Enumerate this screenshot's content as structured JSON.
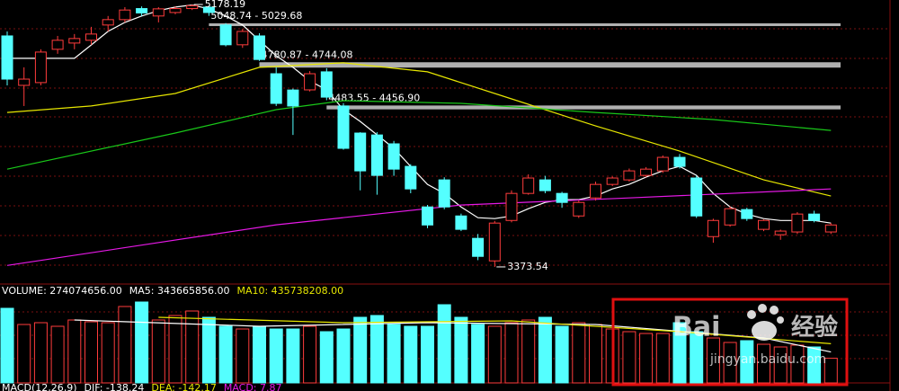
{
  "chart_data": {
    "type": "candlestick",
    "ylim": [
      3262,
      5209
    ],
    "open": [
      4962,
      4622,
      4641,
      4870,
      4913,
      4932,
      5037,
      5074,
      5150,
      5099,
      5123,
      5150,
      5160,
      5037,
      4901,
      4962,
      4702,
      4590,
      4591,
      4715,
      4480,
      4294,
      4281,
      4220,
      4065,
      3786,
      3972,
      3724,
      3570,
      3415,
      3693,
      3879,
      3972,
      3879,
      3724,
      3848,
      3941,
      3972,
      4003,
      4034,
      4127,
      3985,
      3582,
      3662,
      3768,
      3632,
      3595,
      3614,
      3737,
      3614
    ],
    "high": [
      4993,
      4746,
      4870,
      4962,
      4975,
      5024,
      5099,
      5160,
      5165,
      5160,
      5165,
      5178.19,
      5170,
      5050,
      5010,
      4980,
      4745,
      4600,
      4720,
      4740,
      4500,
      4300,
      4300,
      4240,
      4080,
      3800,
      3990,
      3740,
      3600,
      3690,
      3900,
      4010,
      4000,
      3890,
      3830,
      3960,
      3995,
      4050,
      4060,
      4140,
      4150,
      4000,
      3705,
      3790,
      3780,
      3700,
      3630,
      3750,
      3760,
      3675
    ],
    "low": [
      4622,
      4480,
      4622,
      4839,
      4870,
      4901,
      4993,
      5055,
      5099,
      5055,
      5111,
      5140,
      5100,
      4890,
      4880,
      4790,
      4480,
      4281,
      4580,
      4520,
      4180,
      3900,
      3870,
      4000,
      3880,
      3640,
      3770,
      3620,
      3420,
      3373.54,
      3680,
      3870,
      3880,
      3780,
      3710,
      3830,
      3930,
      3960,
      3990,
      4020,
      4050,
      3710,
      3540,
      3650,
      3690,
      3620,
      3560,
      3600,
      3680,
      3600
    ],
    "close": [
      4665,
      4665,
      4851,
      4932,
      4944,
      4975,
      5074,
      5140,
      5120,
      5148,
      5150,
      5170,
      5123,
      4901,
      4993,
      4800,
      4498,
      4480,
      4702,
      4541,
      4189,
      4034,
      4003,
      4046,
      3910,
      3662,
      3786,
      3632,
      3446,
      3675,
      3879,
      3985,
      3898,
      3817,
      3817,
      3941,
      3985,
      4034,
      4046,
      4127,
      4065,
      3724,
      3693,
      3774,
      3706,
      3693,
      3620,
      3737,
      3693,
      3662
    ],
    "up_color": "#ff3c3c",
    "down_color": "#54ffff",
    "price_lines": [
      {
        "color": "#ffffff",
        "x": [
          0,
          1,
          2,
          3,
          4,
          5,
          6,
          7,
          8,
          9,
          10,
          11,
          12,
          13,
          14,
          15,
          16,
          17,
          18,
          19,
          20,
          21,
          22,
          23,
          24,
          25,
          26,
          27,
          28,
          29,
          30,
          31,
          32,
          33,
          34,
          35,
          36,
          37,
          38,
          39,
          40,
          41,
          42,
          43,
          44,
          45,
          46,
          47,
          48,
          49
        ],
        "values": [
          4808,
          4808,
          4808,
          4808,
          4808,
          4900,
          4993,
          5055,
          5099,
          5136,
          5160,
          5175,
          5148,
          5099,
          5037,
          4931,
          4826,
          4746,
          4653,
          4591,
          4455,
          4374,
          4282,
          4189,
          4065,
          3941,
          3879,
          3786,
          3712,
          3706,
          3724,
          3774,
          3817,
          3836,
          3836,
          3861,
          3910,
          3941,
          3991,
          4034,
          4065,
          4003,
          3879,
          3786,
          3737,
          3706,
          3693,
          3693,
          3693,
          3675
        ]
      },
      {
        "color": "#e6e600",
        "x": [
          0,
          5,
          10,
          15,
          20,
          25,
          30,
          35,
          40,
          45,
          49
        ],
        "values": [
          4436,
          4480,
          4566,
          4746,
          4777,
          4715,
          4529,
          4343,
          4170,
          3972,
          3861
        ]
      },
      {
        "color": "#19c819",
        "x": [
          0,
          10,
          16,
          20,
          27,
          35,
          42,
          49
        ],
        "values": [
          4046,
          4294,
          4455,
          4517,
          4498,
          4436,
          4387,
          4312
        ]
      },
      {
        "color": "#e619e6",
        "x": [
          0,
          16,
          27,
          37,
          49
        ],
        "values": [
          3384,
          3663,
          3799,
          3848,
          3910
        ]
      }
    ],
    "bands": [
      {
        "label": "5048.74 - 5029.68",
        "high": 5048.74,
        "low": 5029.68,
        "from": 12
      },
      {
        "label": "4780.87 - 4744.08",
        "high": 4780.87,
        "low": 4744.08,
        "from": 15
      },
      {
        "label": "4483.55 - 4456.90",
        "high": 4483.55,
        "low": 4456.9,
        "from": 19
      }
    ],
    "point_labels": [
      {
        "label": "5178.19",
        "value": 5178.19,
        "at": 11
      },
      {
        "label": "3373.54",
        "value": 3373.54,
        "at": 29
      }
    ],
    "volume_ylim": [
      0,
      900000000
    ],
    "volume": [
      830000000,
      650000000,
      670000000,
      630000000,
      700000000,
      680000000,
      670000000,
      850000000,
      900000000,
      700000000,
      750000000,
      800000000,
      730000000,
      630000000,
      600000000,
      630000000,
      600000000,
      600000000,
      630000000,
      570000000,
      600000000,
      730000000,
      750000000,
      650000000,
      630000000,
      630000000,
      870000000,
      730000000,
      650000000,
      630000000,
      670000000,
      700000000,
      730000000,
      630000000,
      670000000,
      650000000,
      600000000,
      570000000,
      550000000,
      550000000,
      670000000,
      570000000,
      500000000,
      450000000,
      470000000,
      430000000,
      400000000,
      420000000,
      400000000,
      274074656
    ],
    "volume_lines": [
      {
        "color": "#ffffff",
        "x": [
          4,
          15,
          25,
          35,
          45,
          49
        ],
        "values": [
          700000000,
          630000000,
          670000000,
          650000000,
          500000000,
          343665856
        ]
      },
      {
        "color": "#e6e600",
        "x": [
          9,
          20,
          30,
          40,
          49
        ],
        "values": [
          730000000,
          670000000,
          690000000,
          570000000,
          435738208
        ]
      }
    ],
    "volume_header": [
      {
        "text": "VOLUME: 274074656.00",
        "color": "#ffffff"
      },
      {
        "text": "MA5: 343665856.00",
        "color": "#ffffff"
      },
      {
        "text": "MA10: 435738208.00",
        "color": "#e6e600"
      }
    ],
    "macd_header": [
      {
        "text": "MACD(12,26,9)",
        "color": "#ffffff"
      },
      {
        "text": "DIF: -138.24",
        "color": "#ffffff"
      },
      {
        "text": "DEA: -142.17",
        "color": "#e6e600"
      },
      {
        "text": "MACD: 7.87",
        "color": "#e619e6"
      }
    ]
  },
  "watermark": {
    "brand": "Bai",
    "product": "经验",
    "url": "jingyan.baidu.com"
  }
}
